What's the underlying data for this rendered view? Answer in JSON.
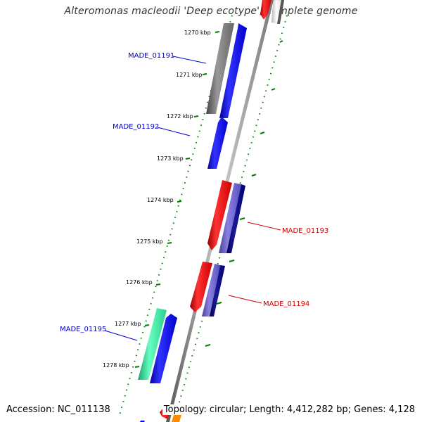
{
  "title": "Alteromonas macleodii 'Deep ecotype', complete genome",
  "footer": {
    "accession": "Accession: NC_011138",
    "summary": "Topology: circular; Length: 4,412,282 bp; Genes: 4,128"
  },
  "ticks": [
    {
      "label": "1270 kbp"
    },
    {
      "label": "1271 kbp"
    },
    {
      "label": "1272 kbp"
    },
    {
      "label": "1273 kbp"
    },
    {
      "label": "1274 kbp"
    },
    {
      "label": "1275 kbp"
    },
    {
      "label": "1276 kbp"
    },
    {
      "label": "1277 kbp"
    },
    {
      "label": "1278 kbp"
    }
  ],
  "gene_labels": [
    {
      "name": "MADE_01191",
      "color": "#0000cc"
    },
    {
      "name": "MADE_01192",
      "color": "#0000cc"
    },
    {
      "name": "MADE_01193",
      "color": "#cc0000"
    },
    {
      "name": "MADE_01194",
      "color": "#cc0000"
    },
    {
      "name": "MADE_01195",
      "color": "#0000cc"
    }
  ],
  "colors": {
    "forward_gene": "#0000ff",
    "reverse_gene": "#ff0000",
    "purple_gene": "#6a5acd",
    "navy_gene": "#000080",
    "gray_gene": "#707070",
    "green_gene": "#33dd99",
    "backbone": "#888888",
    "gc_ticks": "#008000"
  }
}
